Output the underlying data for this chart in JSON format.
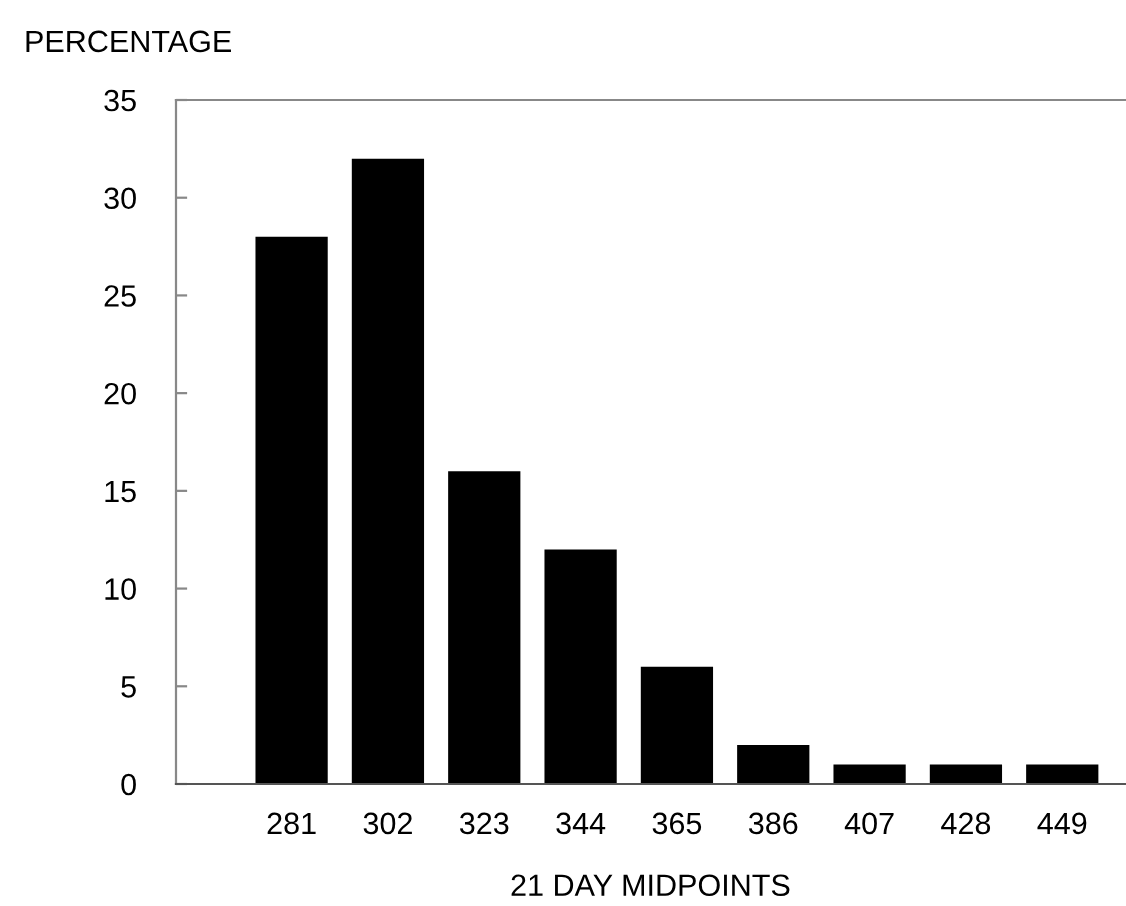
{
  "chart_data": {
    "type": "bar",
    "ylabel": "PERCENTAGE",
    "xlabel": "21 DAY MIDPOINTS",
    "categories": [
      "281",
      "302",
      "323",
      "344",
      "365",
      "386",
      "407",
      "428",
      "449"
    ],
    "values": [
      28,
      32,
      16,
      12,
      6,
      2,
      1,
      1,
      1
    ],
    "color": "#000000",
    "ylim": [
      0,
      35
    ],
    "yticks": [
      0,
      5,
      10,
      15,
      20,
      25,
      30,
      35
    ],
    "grid": false,
    "legend": false
  }
}
